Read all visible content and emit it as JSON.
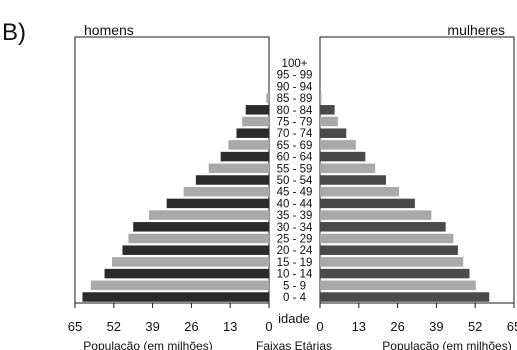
{
  "panel_label": "B)",
  "chart_data": {
    "type": "bar",
    "orientation": "horizontal-population-pyramid",
    "left_title": "homens",
    "right_title": "mulheres",
    "age_groups": [
      "0 - 4",
      "5 - 9",
      "10 - 14",
      "15 - 19",
      "20 - 24",
      "25 - 29",
      "30 - 34",
      "35 - 39",
      "40 - 44",
      "45 - 49",
      "50 - 54",
      "55 - 59",
      "60 - 64",
      "65 - 69",
      "70 - 74",
      "75 - 79",
      "80 - 84",
      "85 - 89",
      "90 - 94",
      "95 - 99",
      "100+"
    ],
    "center_header": "idade",
    "center_axis_label": "Faixas Etárias",
    "series": [
      {
        "name": "homens",
        "side": "left",
        "values": [
          62.5,
          59.7,
          55.1,
          52.6,
          49.1,
          47.1,
          45.5,
          40.2,
          34.3,
          28.6,
          24.5,
          20.2,
          16.2,
          13.6,
          10.9,
          9.0,
          7.8,
          0.9,
          0.1,
          0.0,
          0.0
        ]
      },
      {
        "name": "mulheres",
        "side": "right",
        "values": [
          56.7,
          52.2,
          50.1,
          48.0,
          46.2,
          44.7,
          42.1,
          37.3,
          31.8,
          26.5,
          22.1,
          18.5,
          15.2,
          12.0,
          8.8,
          6.0,
          4.9,
          0.5,
          0.1,
          0.0,
          0.0
        ]
      }
    ],
    "xlim": [
      0,
      65
    ],
    "xticks": [
      65,
      52,
      39,
      26,
      13,
      0
    ],
    "xticks_right": [
      0,
      13,
      26,
      39,
      52,
      65
    ],
    "xlabel_left": "População (em milhões)",
    "xlabel_right": "População (em milhões)",
    "colors": {
      "dark": "#2b2b2b",
      "light": "#a9a9a9",
      "mid": "#4a4a4a",
      "axis": "#1a1a1a"
    }
  }
}
